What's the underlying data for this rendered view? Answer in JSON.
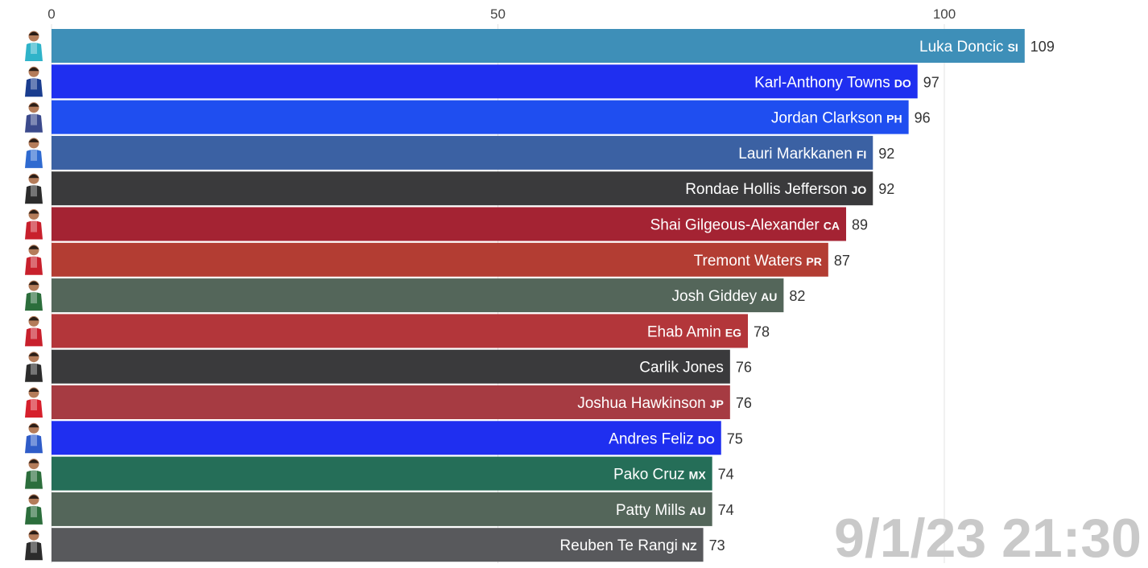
{
  "chart_data": {
    "type": "bar",
    "orientation": "horizontal",
    "xlim": [
      0,
      109
    ],
    "x_ticks": [
      0,
      50,
      100
    ],
    "grid": true,
    "timestamp": "9/1/23 21:30",
    "bars": [
      {
        "name": "Luka Doncic",
        "code": "SI",
        "value": 109,
        "color": "#3e8fb8"
      },
      {
        "name": "Karl-Anthony Towns",
        "code": "DO",
        "value": 97,
        "color": "#1f2ff0"
      },
      {
        "name": "Jordan Clarkson",
        "code": "PH",
        "value": 96,
        "color": "#1f4ef0"
      },
      {
        "name": "Lauri Markkanen",
        "code": "FI",
        "value": 92,
        "color": "#3b61a3"
      },
      {
        "name": "Rondae Hollis Jefferson",
        "code": "JO",
        "value": 92,
        "color": "#3a3a3c"
      },
      {
        "name": "Shai Gilgeous-Alexander",
        "code": "CA",
        "value": 89,
        "color": "#a42333"
      },
      {
        "name": "Tremont Waters",
        "code": "PR",
        "value": 87,
        "color": "#b33d33"
      },
      {
        "name": "Josh Giddey",
        "code": "AU",
        "value": 82,
        "color": "#54665a"
      },
      {
        "name": "Ehab Amin",
        "code": "EG",
        "value": 78,
        "color": "#b3363a"
      },
      {
        "name": "Carlik Jones",
        "code": "",
        "value": 76,
        "color": "#3a3a3c"
      },
      {
        "name": "Joshua Hawkinson",
        "code": "JP",
        "value": 76,
        "color": "#a63b42"
      },
      {
        "name": "Andres Feliz",
        "code": "DO",
        "value": 75,
        "color": "#1f2ff0"
      },
      {
        "name": "Pako Cruz",
        "code": "MX",
        "value": 74,
        "color": "#256e58"
      },
      {
        "name": "Patty Mills",
        "code": "AU",
        "value": 74,
        "color": "#54665a"
      },
      {
        "name": "Reuben Te Rangi",
        "code": "NZ",
        "value": 73,
        "color": "#58595c"
      }
    ],
    "avatar_jersey_colors": [
      "#2fb3c9",
      "#1a3d8f",
      "#3b4a8c",
      "#2f6ad0",
      "#2c2c2c",
      "#c8202c",
      "#c8202c",
      "#2c6e3c",
      "#c8202c",
      "#2c2c2c",
      "#d6202c",
      "#2f5cc8",
      "#2c6e3c",
      "#2c6e3c",
      "#2c2c2c"
    ]
  }
}
